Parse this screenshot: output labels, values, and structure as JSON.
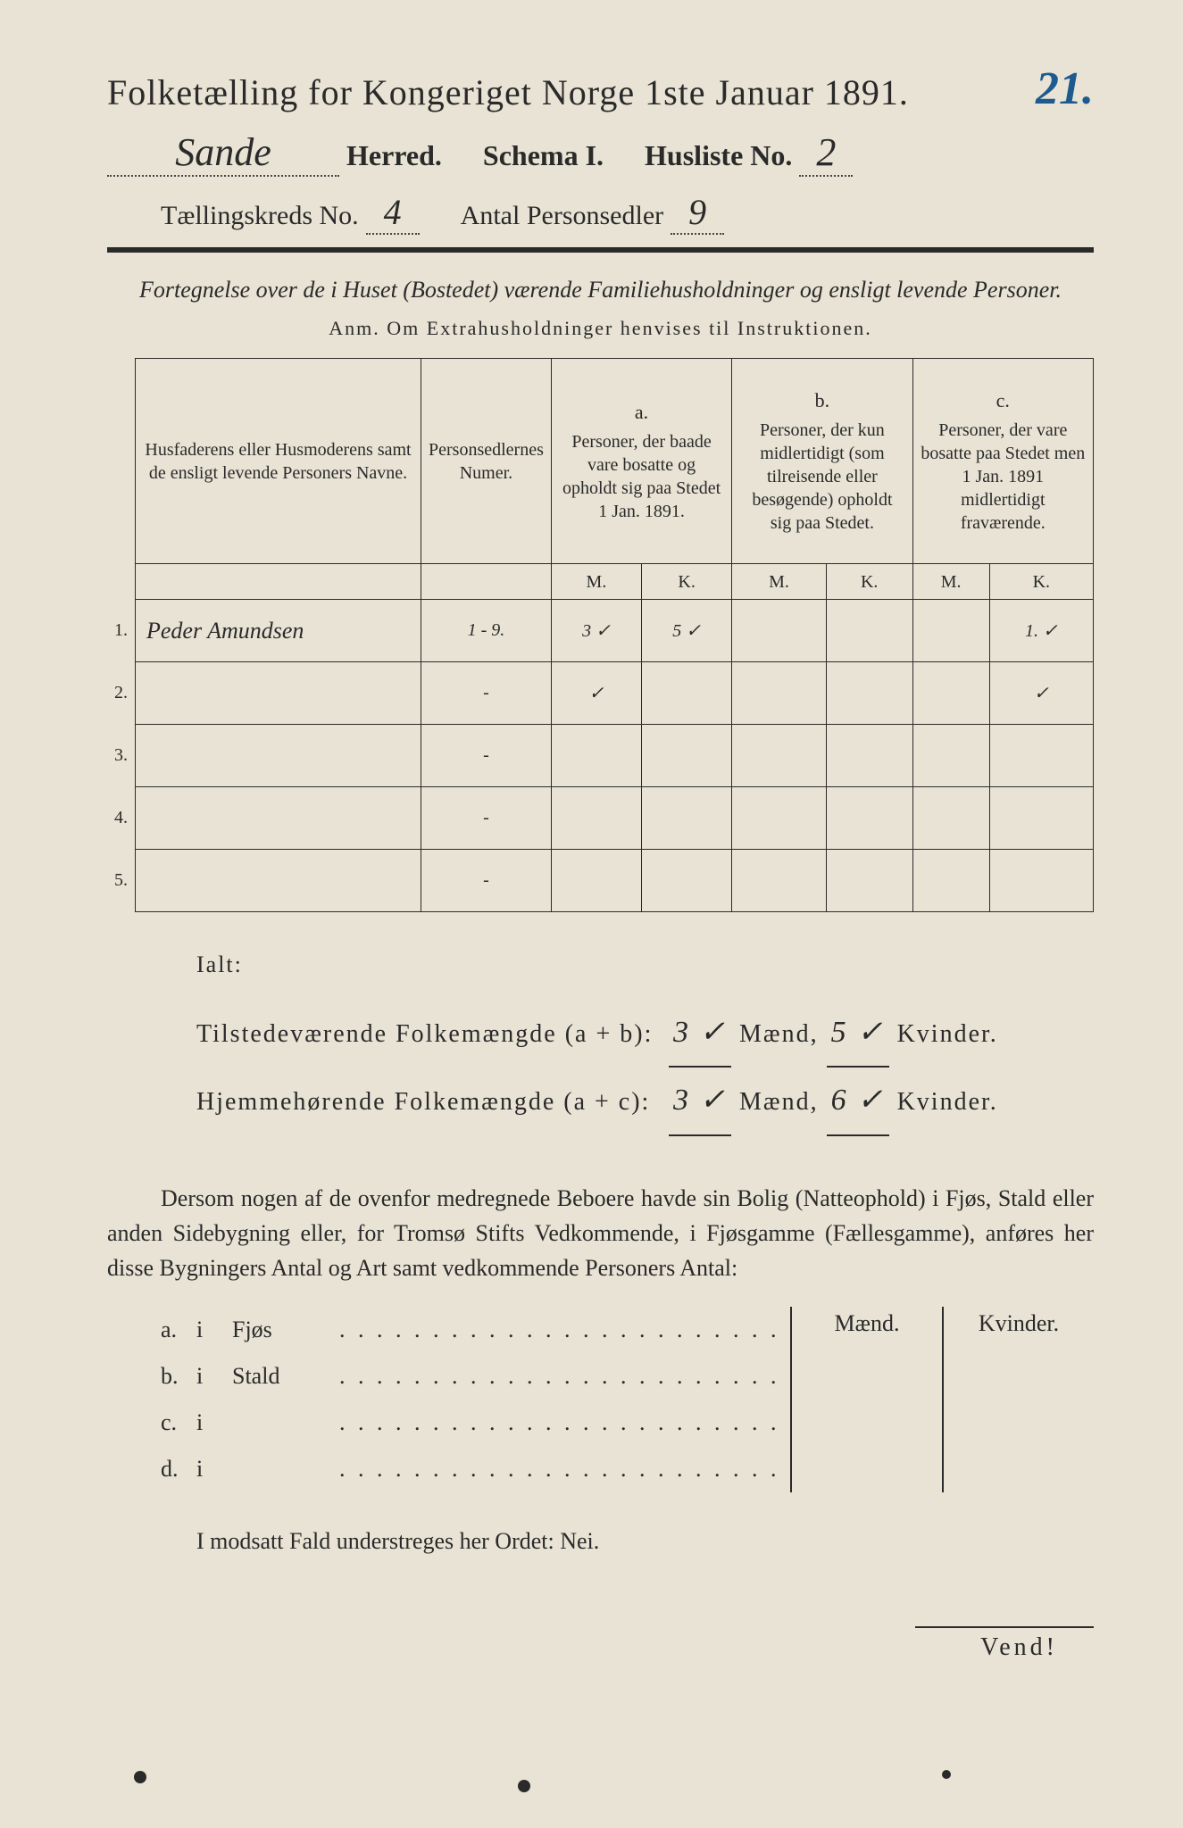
{
  "corner_annotation": "21.",
  "title": "Folketælling for Kongeriget Norge 1ste Januar 1891.",
  "header": {
    "herred_value": "Sande",
    "herred_label": "Herred.",
    "schema_label": "Schema I.",
    "husliste_label": "Husliste No.",
    "husliste_value": "2",
    "kreds_label": "Tællingskreds No.",
    "kreds_value": "4",
    "antal_label": "Antal Personsedler",
    "antal_value": "9"
  },
  "subtitle": "Fortegnelse over de i Huset (Bostedet) værende Familiehusholdninger og ensligt levende Personer.",
  "anm": "Anm.  Om Extrahusholdninger henvises til Instruktionen.",
  "table": {
    "col1": "Husfaderens eller Husmoderens samt de ensligt levende Personers Navne.",
    "col2": "Personsedlernes Numer.",
    "col_a_label": "a.",
    "col_a": "Personer, der baade vare bosatte og opholdt sig paa Stedet 1 Jan. 1891.",
    "col_b_label": "b.",
    "col_b": "Personer, der kun midlertidigt (som tilreisende eller besøgende) opholdt sig paa Stedet.",
    "col_c_label": "c.",
    "col_c": "Personer, der vare bosatte paa Stedet men 1 Jan. 1891 midlertidigt fraværende.",
    "mk_m": "M.",
    "mk_k": "K.",
    "rows": [
      {
        "n": "1.",
        "name": "Peder Amundsen",
        "numer": "1 - 9.",
        "am": "3 ✓",
        "ak": "5 ✓",
        "bm": "",
        "bk": "",
        "cm": "",
        "ck": "1. ✓"
      },
      {
        "n": "2.",
        "name": "",
        "numer": "-",
        "am": "✓",
        "ak": "",
        "bm": "",
        "bk": "",
        "cm": "",
        "ck": "✓"
      },
      {
        "n": "3.",
        "name": "",
        "numer": "-",
        "am": "",
        "ak": "",
        "bm": "",
        "bk": "",
        "cm": "",
        "ck": ""
      },
      {
        "n": "4.",
        "name": "",
        "numer": "-",
        "am": "",
        "ak": "",
        "bm": "",
        "bk": "",
        "cm": "",
        "ck": ""
      },
      {
        "n": "5.",
        "name": "",
        "numer": "-",
        "am": "",
        "ak": "",
        "bm": "",
        "bk": "",
        "cm": "",
        "ck": ""
      }
    ]
  },
  "totals": {
    "ialt": "Ialt:",
    "line1_label": "Tilstedeværende Folkemængde (a + b):",
    "line1_m": "3 ✓",
    "line1_k": "5 ✓",
    "line2_label": "Hjemmehørende Folkemængde (a + c):",
    "line2_m": "3 ✓",
    "line2_k": "6 ✓",
    "maend": "Mænd,",
    "kvinder": "Kvinder."
  },
  "para": "Dersom nogen af de ovenfor medregnede Beboere havde sin Bolig (Natteophold) i Fjøs, Stald eller anden Sidebygning eller, for Tromsø Stifts Vedkommende, i Fjøsgamme (Fællesgamme), anføres her disse Bygningers Antal og Art samt vedkommende Personers Antal:",
  "side_table": {
    "col_m": "Mænd.",
    "col_k": "Kvinder.",
    "rows": [
      {
        "l": "a.",
        "i": "i",
        "t": "Fjøs"
      },
      {
        "l": "b.",
        "i": "i",
        "t": "Stald"
      },
      {
        "l": "c.",
        "i": "i",
        "t": ""
      },
      {
        "l": "d.",
        "i": "i",
        "t": ""
      }
    ]
  },
  "bottom": "I modsatt Fald understreges her Ordet: Nei.",
  "vend": "Vend!",
  "colors": {
    "paper": "#e8e3d4",
    "ink": "#2a2a2a",
    "blue_pencil": "#1e5a8e"
  }
}
